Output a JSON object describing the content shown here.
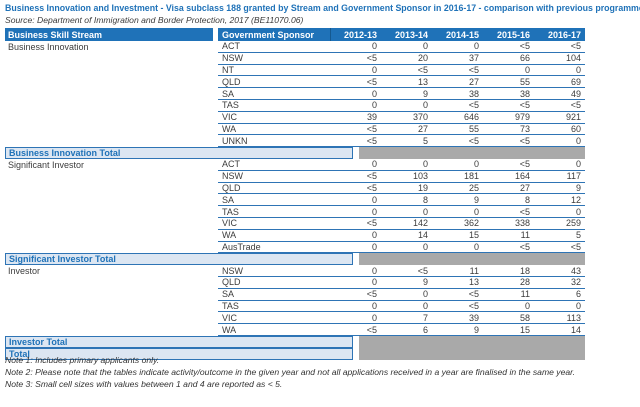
{
  "title": "Business Innovation and Investment - Visa subclass 188 granted by Stream and Government Sponsor in 2016-17 - comparison with previous programme year",
  "source": "Source: Department of Immigration and Border Protection, 2017 (BE11070.06)",
  "table": {
    "columns": [
      "Business Skill Stream",
      "Government Sponsor",
      "2012-13",
      "2013-14",
      "2014-15",
      "2015-16",
      "2016-17"
    ],
    "sections": [
      {
        "stream": "Business Innovation",
        "total_label": "Business Innovation Total",
        "rows": [
          {
            "sponsor": "ACT",
            "values": [
              "0",
              "0",
              "0",
              "<5",
              "<5"
            ]
          },
          {
            "sponsor": "NSW",
            "values": [
              "<5",
              "20",
              "37",
              "66",
              "104"
            ]
          },
          {
            "sponsor": "NT",
            "values": [
              "0",
              "<5",
              "<5",
              "0",
              "0"
            ]
          },
          {
            "sponsor": "QLD",
            "values": [
              "<5",
              "13",
              "27",
              "55",
              "69"
            ]
          },
          {
            "sponsor": "SA",
            "values": [
              "0",
              "9",
              "38",
              "38",
              "49"
            ]
          },
          {
            "sponsor": "TAS",
            "values": [
              "0",
              "0",
              "<5",
              "<5",
              "<5"
            ]
          },
          {
            "sponsor": "VIC",
            "values": [
              "39",
              "370",
              "646",
              "979",
              "921"
            ]
          },
          {
            "sponsor": "WA",
            "values": [
              "<5",
              "27",
              "55",
              "73",
              "60"
            ]
          },
          {
            "sponsor": "UNKN",
            "values": [
              "<5",
              "5",
              "<5",
              "<5",
              "0"
            ]
          }
        ]
      },
      {
        "stream": "Significant Investor",
        "total_label": "Significant Investor Total",
        "rows": [
          {
            "sponsor": "ACT",
            "values": [
              "0",
              "0",
              "0",
              "<5",
              "0"
            ]
          },
          {
            "sponsor": "NSW",
            "values": [
              "<5",
              "103",
              "181",
              "164",
              "117"
            ]
          },
          {
            "sponsor": "QLD",
            "values": [
              "<5",
              "19",
              "25",
              "27",
              "9"
            ]
          },
          {
            "sponsor": "SA",
            "values": [
              "0",
              "8",
              "9",
              "8",
              "12"
            ]
          },
          {
            "sponsor": "TAS",
            "values": [
              "0",
              "0",
              "0",
              "<5",
              "0"
            ]
          },
          {
            "sponsor": "VIC",
            "values": [
              "<5",
              "142",
              "362",
              "338",
              "259"
            ]
          },
          {
            "sponsor": "WA",
            "values": [
              "0",
              "14",
              "15",
              "11",
              "5"
            ]
          },
          {
            "sponsor": "AusTrade",
            "values": [
              "0",
              "0",
              "0",
              "<5",
              "<5"
            ]
          }
        ]
      },
      {
        "stream": "Investor",
        "total_label": "Investor Total",
        "rows": [
          {
            "sponsor": "NSW",
            "values": [
              "0",
              "<5",
              "11",
              "18",
              "43"
            ]
          },
          {
            "sponsor": "QLD",
            "values": [
              "0",
              "9",
              "13",
              "28",
              "32"
            ]
          },
          {
            "sponsor": "SA",
            "values": [
              "<5",
              "0",
              "<5",
              "11",
              "6"
            ]
          },
          {
            "sponsor": "TAS",
            "values": [
              "0",
              "0",
              "<5",
              "0",
              "0"
            ]
          },
          {
            "sponsor": "VIC",
            "values": [
              "0",
              "7",
              "39",
              "58",
              "113"
            ]
          },
          {
            "sponsor": "WA",
            "values": [
              "<5",
              "6",
              "9",
              "15",
              "14"
            ]
          }
        ]
      }
    ],
    "grand_total_label": "Total"
  },
  "notes": [
    "Note 1: Includes primary applicants only.",
    "Note 2: Please note that the tables indicate activity/outcome in the given year and not all applications received in a year are finalised in the same year.",
    "Note 3: Small cell sizes with values between 1 and 4 are reported as < 5."
  ],
  "colors": {
    "header_blue": "#1F72B8",
    "row_line": "#2E74B5",
    "total_row_bg": "#DCE6F2",
    "total_row_text": "#1F72B8",
    "redacted_gray": "#A9A9A9"
  }
}
